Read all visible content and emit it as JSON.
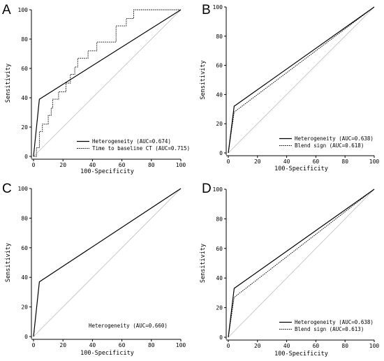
{
  "figure": {
    "panels": [
      {
        "letter": "A",
        "xlabel": "100-Specificity",
        "ylabel": "Sensitivity",
        "x_ticks": [
          "0",
          "20",
          "40",
          "60",
          "80",
          "100"
        ],
        "y_ticks": [
          "0",
          "20",
          "40",
          "60",
          "80",
          "100"
        ],
        "series": [
          {
            "label": "Heterogeneity (AUC=0.674)",
            "style": "solid"
          },
          {
            "label": "Time to baseline CT (AUC=0.715)",
            "style": "dotted"
          }
        ]
      },
      {
        "letter": "B",
        "xlabel": "100-Specificity",
        "ylabel": "Sensitivity",
        "x_ticks": [
          "0",
          "20",
          "40",
          "60",
          "80",
          "100"
        ],
        "y_ticks": [
          "0",
          "20",
          "40",
          "60",
          "80",
          "100"
        ],
        "series": [
          {
            "label": "Heterogeneity (AUC=0.638)",
            "style": "solid"
          },
          {
            "label": "Blend sign (AUC=0.618)",
            "style": "dotted"
          }
        ]
      },
      {
        "letter": "C",
        "xlabel": "100-Specificity",
        "ylabel": "Sensitivity",
        "x_ticks": [
          "0",
          "20",
          "40",
          "60",
          "80",
          "100"
        ],
        "y_ticks": [
          "0",
          "20",
          "40",
          "60",
          "80",
          "100"
        ],
        "series": [
          {
            "label": "Heterogeneity (AUC=0.660)",
            "style": "solid"
          }
        ]
      },
      {
        "letter": "D",
        "xlabel": "100-Specificity",
        "ylabel": "Sensitivity",
        "x_ticks": [
          "0",
          "20",
          "40",
          "60",
          "80",
          "100"
        ],
        "y_ticks": [
          "0",
          "20",
          "40",
          "60",
          "80",
          "100"
        ],
        "series": [
          {
            "label": "Heterogeneity (AUC=0.638)",
            "style": "solid"
          },
          {
            "label": "Blend sign (AUC=0.613)",
            "style": "dotted"
          }
        ]
      }
    ]
  },
  "chart_data": [
    {
      "type": "line",
      "panel": "A",
      "xlabel": "100-Specificity",
      "ylabel": "Sensitivity",
      "xlim": [
        0,
        100
      ],
      "ylim": [
        0,
        100
      ],
      "reference_line": "diagonal",
      "legend_position": "bottom-right",
      "series": [
        {
          "name": "Heterogeneity (AUC=0.674)",
          "style": "solid",
          "points": [
            [
              0,
              0
            ],
            [
              4,
              39
            ],
            [
              100,
              100
            ]
          ]
        },
        {
          "name": "Time to baseline CT (AUC=0.715)",
          "style": "dotted",
          "points": [
            [
              0,
              0
            ],
            [
              2,
              0
            ],
            [
              2,
              6
            ],
            [
              4,
              6
            ],
            [
              4,
              17
            ],
            [
              6,
              17
            ],
            [
              6,
              22
            ],
            [
              10,
              22
            ],
            [
              10,
              28
            ],
            [
              12,
              28
            ],
            [
              12,
              33
            ],
            [
              13,
              33
            ],
            [
              13,
              39
            ],
            [
              17,
              39
            ],
            [
              17,
              44
            ],
            [
              22,
              44
            ],
            [
              22,
              50
            ],
            [
              25,
              50
            ],
            [
              25,
              56
            ],
            [
              28,
              56
            ],
            [
              28,
              61
            ],
            [
              30,
              61
            ],
            [
              30,
              67
            ],
            [
              37,
              67
            ],
            [
              37,
              72
            ],
            [
              43,
              72
            ],
            [
              43,
              78
            ],
            [
              56,
              78
            ],
            [
              56,
              89
            ],
            [
              63,
              89
            ],
            [
              63,
              94
            ],
            [
              68,
              94
            ],
            [
              68,
              100
            ],
            [
              100,
              100
            ]
          ]
        }
      ]
    },
    {
      "type": "line",
      "panel": "B",
      "xlabel": "100-Specificity",
      "ylabel": "Sensitivity",
      "xlim": [
        0,
        100
      ],
      "ylim": [
        0,
        100
      ],
      "reference_line": "diagonal",
      "legend_position": "bottom-right",
      "series": [
        {
          "name": "Heterogeneity (AUC=0.638)",
          "style": "solid",
          "points": [
            [
              0,
              0
            ],
            [
              4,
              32
            ],
            [
              100,
              100
            ]
          ]
        },
        {
          "name": "Blend sign (AUC=0.618)",
          "style": "dotted",
          "points": [
            [
              0,
              0
            ],
            [
              4,
              28
            ],
            [
              100,
              100
            ]
          ]
        }
      ]
    },
    {
      "type": "line",
      "panel": "C",
      "xlabel": "100-Specificity",
      "ylabel": "Sensitivity",
      "xlim": [
        0,
        100
      ],
      "ylim": [
        0,
        100
      ],
      "reference_line": "diagonal",
      "legend_position": "bottom-right",
      "series": [
        {
          "name": "Heterogeneity (AUC=0.660)",
          "style": "solid",
          "points": [
            [
              0,
              0
            ],
            [
              4,
              37
            ],
            [
              100,
              100
            ]
          ]
        }
      ]
    },
    {
      "type": "line",
      "panel": "D",
      "xlabel": "100-Specificity",
      "ylabel": "Sensitivity",
      "xlim": [
        0,
        100
      ],
      "ylim": [
        0,
        100
      ],
      "reference_line": "diagonal",
      "legend_position": "bottom-right",
      "series": [
        {
          "name": "Heterogeneity (AUC=0.638)",
          "style": "solid",
          "points": [
            [
              0,
              0
            ],
            [
              4,
              33
            ],
            [
              100,
              100
            ]
          ]
        },
        {
          "name": "Blend sign (AUC=0.613)",
          "style": "dotted",
          "points": [
            [
              0,
              0
            ],
            [
              4,
              27
            ],
            [
              100,
              100
            ]
          ]
        }
      ]
    }
  ]
}
